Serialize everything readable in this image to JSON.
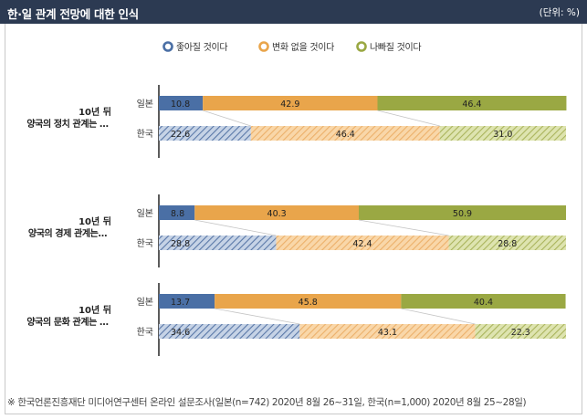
{
  "header": {
    "title": "한·일 관계 전망에 대한 인식",
    "unit": "(단위: %)"
  },
  "colors": {
    "good": "#4a6fa5",
    "same": "#e9a54b",
    "bad": "#9aa843",
    "header_bg": "#2c3a52"
  },
  "chart_data": {
    "type": "bar",
    "orientation": "horizontal",
    "stacked": true,
    "unit": "%",
    "xlim": [
      0,
      100
    ],
    "legend_position": "top-center",
    "series": [
      {
        "name": "좋아질 것이다",
        "color": "#4a6fa5"
      },
      {
        "name": "변화 없을 것이다",
        "color": "#e9a54b"
      },
      {
        "name": "나빠질 것이다",
        "color": "#9aa843"
      }
    ],
    "groups": [
      {
        "label_line1": "10년 뒤",
        "label_line2": "양국의 정치 관계는 …",
        "bars": [
          {
            "country": "일본",
            "values": [
              10.8,
              42.9,
              46.4
            ]
          },
          {
            "country": "한국",
            "values": [
              22.6,
              46.4,
              31.0
            ]
          }
        ]
      },
      {
        "label_line1": "10년 뒤",
        "label_line2": "양국의 경제 관계는…",
        "bars": [
          {
            "country": "일본",
            "values": [
              8.8,
              40.3,
              50.9
            ]
          },
          {
            "country": "한국",
            "values": [
              28.8,
              42.4,
              28.8
            ]
          }
        ]
      },
      {
        "label_line1": "10년 뒤",
        "label_line2": "양국의 문화 관계는 …",
        "bars": [
          {
            "country": "일본",
            "values": [
              13.7,
              45.8,
              40.4
            ]
          },
          {
            "country": "한국",
            "values": [
              34.6,
              43.1,
              22.3
            ]
          }
        ]
      }
    ]
  },
  "footnote": "※ 한국언론진흥재단 미디어연구센터 온라인 설문조사(일본(n=742) 2020년 8월 26~31일, 한국(n=1,000) 2020년 8월 25~28일)"
}
